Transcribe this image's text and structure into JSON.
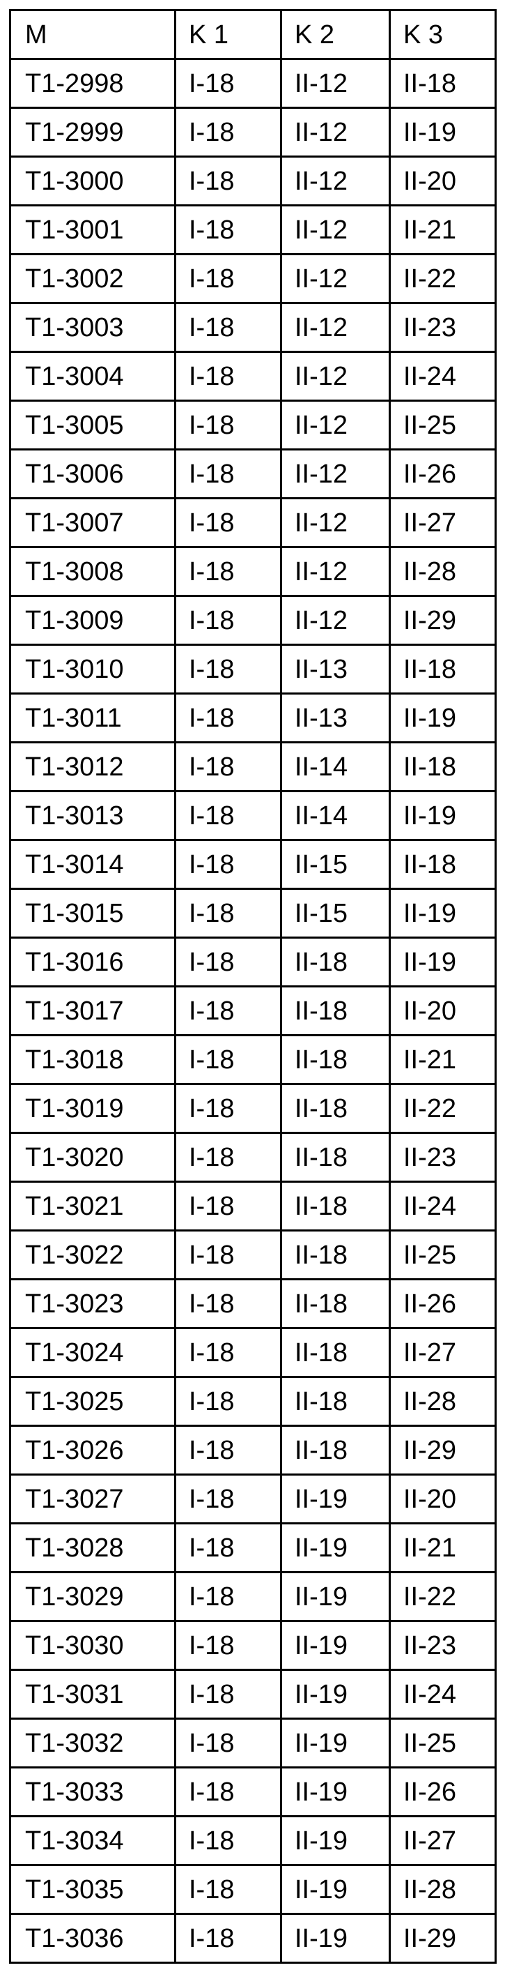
{
  "table": {
    "headers": [
      "M",
      "K 1",
      "K 2",
      "K 3"
    ],
    "rows": [
      [
        "T1-2998",
        "I-18",
        "II-12",
        "II-18"
      ],
      [
        "T1-2999",
        "I-18",
        "II-12",
        "II-19"
      ],
      [
        "T1-3000",
        "I-18",
        "II-12",
        "II-20"
      ],
      [
        "T1-3001",
        "I-18",
        "II-12",
        "II-21"
      ],
      [
        "T1-3002",
        "I-18",
        "II-12",
        "II-22"
      ],
      [
        "T1-3003",
        "I-18",
        "II-12",
        "II-23"
      ],
      [
        "T1-3004",
        "I-18",
        "II-12",
        "II-24"
      ],
      [
        "T1-3005",
        "I-18",
        "II-12",
        "II-25"
      ],
      [
        "T1-3006",
        "I-18",
        "II-12",
        "II-26"
      ],
      [
        "T1-3007",
        "I-18",
        "II-12",
        "II-27"
      ],
      [
        "T1-3008",
        "I-18",
        "II-12",
        "II-28"
      ],
      [
        "T1-3009",
        "I-18",
        "II-12",
        "II-29"
      ],
      [
        "T1-3010",
        "I-18",
        "II-13",
        "II-18"
      ],
      [
        "T1-3011",
        "I-18",
        "II-13",
        "II-19"
      ],
      [
        "T1-3012",
        "I-18",
        "II-14",
        "II-18"
      ],
      [
        "T1-3013",
        "I-18",
        "II-14",
        "II-19"
      ],
      [
        "T1-3014",
        "I-18",
        "II-15",
        "II-18"
      ],
      [
        "T1-3015",
        "I-18",
        "II-15",
        "II-19"
      ],
      [
        "T1-3016",
        "I-18",
        "II-18",
        "II-19"
      ],
      [
        "T1-3017",
        "I-18",
        "II-18",
        "II-20"
      ],
      [
        "T1-3018",
        "I-18",
        "II-18",
        "II-21"
      ],
      [
        "T1-3019",
        "I-18",
        "II-18",
        "II-22"
      ],
      [
        "T1-3020",
        "I-18",
        "II-18",
        "II-23"
      ],
      [
        "T1-3021",
        "I-18",
        "II-18",
        "II-24"
      ],
      [
        "T1-3022",
        "I-18",
        "II-18",
        "II-25"
      ],
      [
        "T1-3023",
        "I-18",
        "II-18",
        "II-26"
      ],
      [
        "T1-3024",
        "I-18",
        "II-18",
        "II-27"
      ],
      [
        "T1-3025",
        "I-18",
        "II-18",
        "II-28"
      ],
      [
        "T1-3026",
        "I-18",
        "II-18",
        "II-29"
      ],
      [
        "T1-3027",
        "I-18",
        "II-19",
        "II-20"
      ],
      [
        "T1-3028",
        "I-18",
        "II-19",
        "II-21"
      ],
      [
        "T1-3029",
        "I-18",
        "II-19",
        "II-22"
      ],
      [
        "T1-3030",
        "I-18",
        "II-19",
        "II-23"
      ],
      [
        "T1-3031",
        "I-18",
        "II-19",
        "II-24"
      ],
      [
        "T1-3032",
        "I-18",
        "II-19",
        "II-25"
      ],
      [
        "T1-3033",
        "I-18",
        "II-19",
        "II-26"
      ],
      [
        "T1-3034",
        "I-18",
        "II-19",
        "II-27"
      ],
      [
        "T1-3035",
        "I-18",
        "II-19",
        "II-28"
      ],
      [
        "T1-3036",
        "I-18",
        "II-19",
        "II-29"
      ]
    ]
  }
}
